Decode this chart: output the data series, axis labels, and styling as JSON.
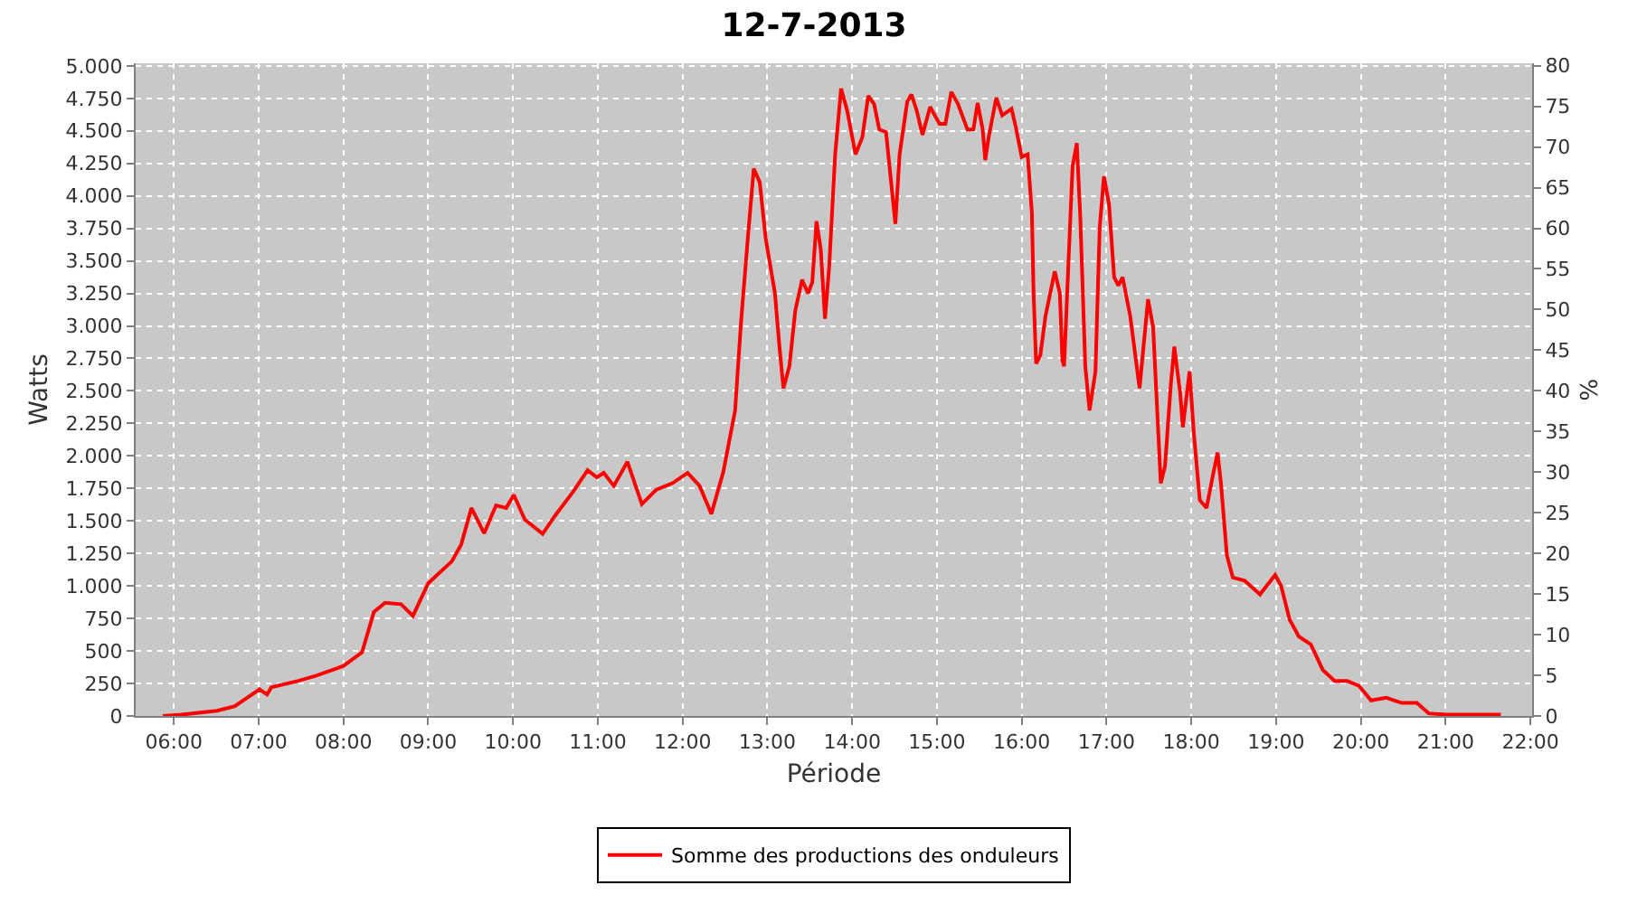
{
  "chart_data": {
    "type": "line",
    "title": "12-7-2013",
    "xlabel": "Période",
    "ylabel": "Watts",
    "y2label": "%",
    "x": [
      5.87,
      6.09,
      6.51,
      6.72,
      7.01,
      7.1,
      7.15,
      7.47,
      7.68,
      7.9,
      8.0,
      8.22,
      8.36,
      8.49,
      8.68,
      8.82,
      9.0,
      9.14,
      9.28,
      9.39,
      9.51,
      9.66,
      9.8,
      9.92,
      10.01,
      10.14,
      10.35,
      10.49,
      10.71,
      10.88,
      10.99,
      11.07,
      11.19,
      11.35,
      11.52,
      11.69,
      11.88,
      12.06,
      12.2,
      12.34,
      12.48,
      12.62,
      12.69,
      12.77,
      12.84,
      12.91,
      12.98,
      13.09,
      13.14,
      13.19,
      13.26,
      13.33,
      13.41,
      13.48,
      13.53,
      13.58,
      13.63,
      13.68,
      13.73,
      13.8,
      13.87,
      13.94,
      14.04,
      14.12,
      14.19,
      14.26,
      14.32,
      14.4,
      14.46,
      14.51,
      14.56,
      14.65,
      14.7,
      14.76,
      14.83,
      14.92,
      15.03,
      15.1,
      15.17,
      15.25,
      15.36,
      15.43,
      15.48,
      15.54,
      15.57,
      15.61,
      15.7,
      15.77,
      15.88,
      15.93,
      16.0,
      16.07,
      16.12,
      16.14,
      16.17,
      16.22,
      16.28,
      16.39,
      16.45,
      16.48,
      16.5,
      16.55,
      16.6,
      16.65,
      16.69,
      16.75,
      16.8,
      16.87,
      16.92,
      16.97,
      17.03,
      17.09,
      17.14,
      17.19,
      17.28,
      17.39,
      17.49,
      17.55,
      17.64,
      17.69,
      17.76,
      17.8,
      17.87,
      17.9,
      17.98,
      18.03,
      18.1,
      18.18,
      18.25,
      18.31,
      18.35,
      18.42,
      18.49,
      18.63,
      18.7,
      18.81,
      18.99,
      19.06,
      19.16,
      19.27,
      19.41,
      19.55,
      19.69,
      19.84,
      19.98,
      20.12,
      20.3,
      20.48,
      20.66,
      20.8,
      21.01,
      21.65
    ],
    "series": [
      {
        "name": "Somme des productions des onduleurs",
        "color": "#ff0000",
        "values": [
          0,
          10,
          40,
          75,
          205,
          165,
          220,
          270,
          310,
          360,
          385,
          490,
          800,
          870,
          860,
          770,
          1020,
          1105,
          1190,
          1320,
          1600,
          1405,
          1620,
          1600,
          1700,
          1510,
          1400,
          1535,
          1725,
          1890,
          1835,
          1870,
          1770,
          1955,
          1630,
          1740,
          1790,
          1870,
          1770,
          1555,
          1875,
          2350,
          3030,
          3675,
          4210,
          4105,
          3675,
          3250,
          2860,
          2520,
          2690,
          3120,
          3355,
          3250,
          3335,
          3805,
          3590,
          3055,
          3460,
          4320,
          4825,
          4660,
          4320,
          4450,
          4770,
          4705,
          4510,
          4490,
          4105,
          3785,
          4320,
          4725,
          4780,
          4660,
          4470,
          4685,
          4555,
          4555,
          4800,
          4705,
          4510,
          4510,
          4715,
          4510,
          4275,
          4450,
          4755,
          4620,
          4670,
          4530,
          4300,
          4320,
          3870,
          3250,
          2710,
          2775,
          3075,
          3420,
          3250,
          2735,
          2690,
          3460,
          4230,
          4405,
          3850,
          2690,
          2350,
          2650,
          3760,
          4150,
          3935,
          3375,
          3310,
          3375,
          3075,
          2520,
          3205,
          2990,
          1790,
          1920,
          2560,
          2840,
          2475,
          2220,
          2650,
          2175,
          1660,
          1600,
          1835,
          2025,
          1790,
          1235,
          1065,
          1040,
          1000,
          935,
          1085,
          1000,
          740,
          610,
          550,
          355,
          270,
          270,
          230,
          120,
          140,
          100,
          100,
          20,
          10,
          10
        ]
      }
    ],
    "xlim": [
      5.55,
      22.02
    ],
    "xticks": [
      {
        "value": 6,
        "label": "06:00"
      },
      {
        "value": 7,
        "label": "07:00"
      },
      {
        "value": 8,
        "label": "08:00"
      },
      {
        "value": 9,
        "label": "09:00"
      },
      {
        "value": 10,
        "label": "10:00"
      },
      {
        "value": 11,
        "label": "11:00"
      },
      {
        "value": 12,
        "label": "12:00"
      },
      {
        "value": 13,
        "label": "13:00"
      },
      {
        "value": 14,
        "label": "14:00"
      },
      {
        "value": 15,
        "label": "15:00"
      },
      {
        "value": 16,
        "label": "16:00"
      },
      {
        "value": 17,
        "label": "17:00"
      },
      {
        "value": 18,
        "label": "18:00"
      },
      {
        "value": 19,
        "label": "19:00"
      },
      {
        "value": 20,
        "label": "20:00"
      },
      {
        "value": 21,
        "label": "21:00"
      },
      {
        "value": 22,
        "label": "22:00"
      }
    ],
    "ylim": [
      0,
      5020
    ],
    "yticks": [
      0,
      250,
      500,
      750,
      {
        "value": 1000,
        "label": "1.000"
      },
      {
        "value": 1250,
        "label": "1.250"
      },
      {
        "value": 1500,
        "label": "1.500"
      },
      {
        "value": 1750,
        "label": "1.750"
      },
      {
        "value": 2000,
        "label": "2.000"
      },
      {
        "value": 2250,
        "label": "2.250"
      },
      {
        "value": 2500,
        "label": "2.500"
      },
      {
        "value": 2750,
        "label": "2.750"
      },
      {
        "value": 3000,
        "label": "3.000"
      },
      {
        "value": 3250,
        "label": "3.250"
      },
      {
        "value": 3500,
        "label": "3.500"
      },
      {
        "value": 3750,
        "label": "3.750"
      },
      {
        "value": 4000,
        "label": "4.000"
      },
      {
        "value": 4250,
        "label": "4.250"
      },
      {
        "value": 4500,
        "label": "4.500"
      },
      {
        "value": 4750,
        "label": "4.750"
      },
      {
        "value": 5000,
        "label": "5.000"
      }
    ],
    "y2lim": [
      0,
      80.3
    ],
    "y2ticks": [
      0,
      5,
      10,
      15,
      20,
      25,
      30,
      35,
      40,
      45,
      50,
      55,
      60,
      65,
      70,
      75,
      80
    ],
    "grid": true,
    "legend": "bottom",
    "marker": "none",
    "line_style": "solid"
  }
}
